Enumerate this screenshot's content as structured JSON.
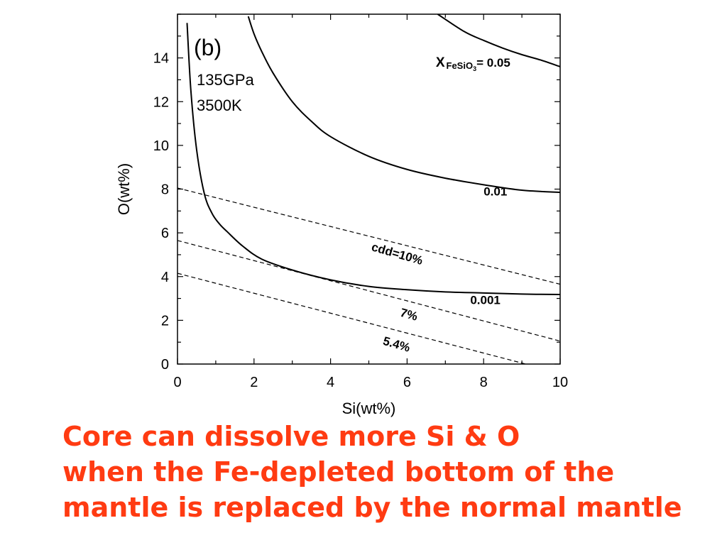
{
  "caption": {
    "lines": [
      "Core can dissolve more Si & O",
      "when the Fe-depleted bottom of  the",
      "mantle is replaced by the normal mantle"
    ],
    "color": "#ff3b12"
  },
  "chart_data": {
    "type": "line",
    "panel_label": "(b)",
    "conditions": [
      "135GPa",
      "3500K"
    ],
    "xlabel": "Si(wt%)",
    "ylabel": "O(wt%)",
    "xlim": [
      0,
      10
    ],
    "ylim": [
      0,
      16
    ],
    "xticks": [
      0,
      2,
      4,
      6,
      8,
      10
    ],
    "yticks": [
      0,
      2,
      4,
      6,
      8,
      10,
      12,
      14
    ],
    "grid": false,
    "series": [
      {
        "name": "0.001",
        "style": "solid",
        "x": [
          0.25,
          0.35,
          0.5,
          0.7,
          0.9,
          1.1,
          1.3,
          1.7,
          2.2,
          3.0,
          4.0,
          5.0,
          6.0,
          7.0,
          8.0,
          9.0,
          10.0
        ],
        "y": [
          15.6,
          12.5,
          9.8,
          7.8,
          6.9,
          6.4,
          6.05,
          5.4,
          4.8,
          4.3,
          3.85,
          3.55,
          3.4,
          3.3,
          3.25,
          3.2,
          3.18
        ]
      },
      {
        "name": "0.01",
        "style": "solid",
        "x": [
          1.85,
          2.0,
          2.2,
          2.5,
          3.0,
          3.5,
          4.0,
          5.0,
          6.0,
          7.0,
          8.0,
          9.0,
          10.0
        ],
        "y": [
          15.9,
          15.1,
          14.3,
          13.3,
          12.0,
          11.1,
          10.4,
          9.5,
          8.9,
          8.5,
          8.2,
          7.95,
          7.85
        ]
      },
      {
        "name": "0.05",
        "style": "solid",
        "x": [
          6.8,
          7.5,
          8.0,
          8.5,
          9.0,
          9.5,
          10.0
        ],
        "y": [
          16.0,
          15.2,
          14.8,
          14.45,
          14.15,
          13.9,
          13.6
        ]
      },
      {
        "name": "10%",
        "style": "dashed",
        "x": [
          0,
          10
        ],
        "y": [
          8.05,
          3.65
        ]
      },
      {
        "name": "7%",
        "style": "dashed",
        "x": [
          0,
          10
        ],
        "y": [
          5.65,
          1.05
        ]
      },
      {
        "name": "5.4%",
        "style": "dashed",
        "x": [
          0,
          9.1
        ],
        "y": [
          4.15,
          0
        ]
      }
    ],
    "annotations": [
      {
        "text": "X",
        "sub": "FeSiO",
        "subsub": "3",
        "after": "= 0.05",
        "x": 6.75,
        "y": 13.6,
        "rotate": 0
      },
      {
        "text": "0.01",
        "x": 8.0,
        "y": 7.7,
        "rotate": 0
      },
      {
        "text": "0.001",
        "x": 7.65,
        "y": 2.75,
        "rotate": 0
      },
      {
        "text": "cdd=10%",
        "x": 5.05,
        "y": 5.2,
        "rotate": 16
      },
      {
        "text": "7%",
        "x": 5.8,
        "y": 2.2,
        "rotate": 16
      },
      {
        "text": "5.4%",
        "x": 5.35,
        "y": 0.9,
        "rotate": 16
      }
    ]
  }
}
